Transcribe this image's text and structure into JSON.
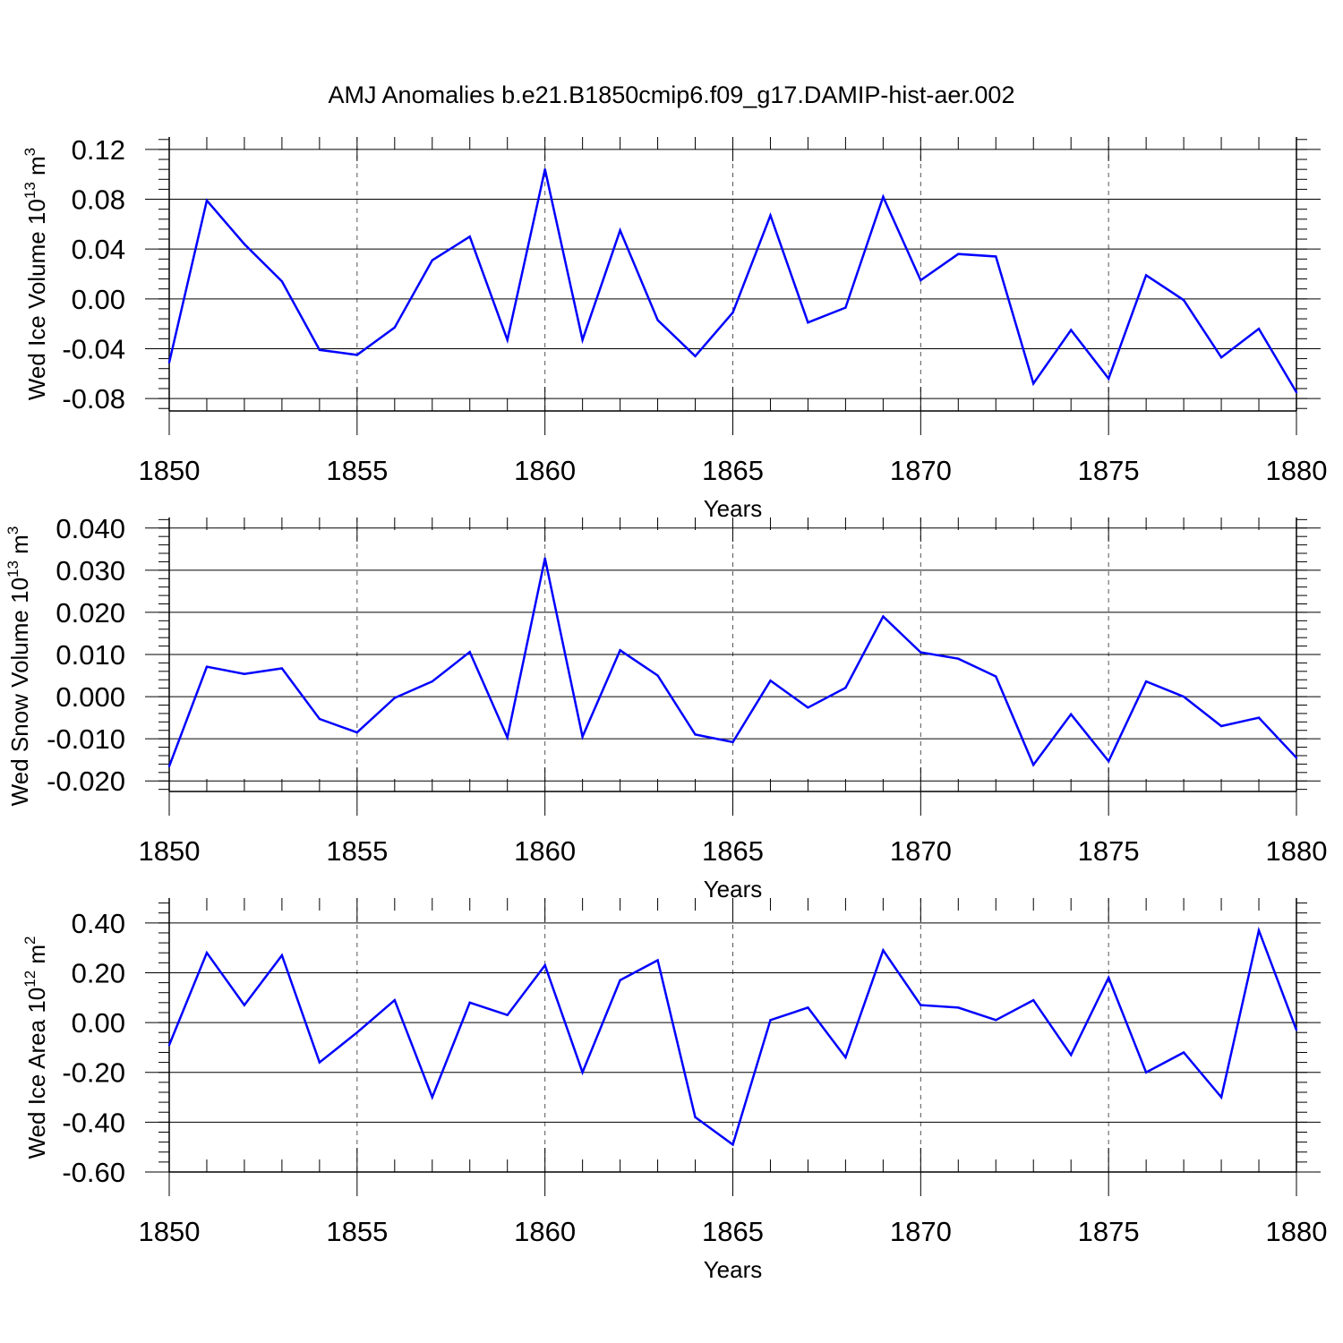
{
  "title": "AMJ Anomalies b.e21.B1850cmip6.f09_g17.DAMIP-hist-aer.002",
  "line_color": "#0000ff",
  "chart_data": [
    {
      "type": "line",
      "ylabel_main": "Wed Ice Volume 10",
      "ylabel_exp": "13",
      "ylabel_unit": " m",
      "ylabel_unit_exp": "3",
      "xlabel": "Years",
      "xlim": [
        1850,
        1880
      ],
      "ylim": [
        -0.09,
        0.13
      ],
      "yticks": [
        -0.08,
        -0.04,
        0.0,
        0.04,
        0.08,
        0.12
      ],
      "ytick_labels": [
        "-0.08",
        "-0.04",
        "0.00",
        "0.04",
        "0.08",
        "0.12"
      ],
      "xticks": [
        1850,
        1855,
        1860,
        1865,
        1870,
        1875,
        1880
      ],
      "xtick_labels": [
        "1850",
        "1855",
        "1860",
        "1865",
        "1870",
        "1875",
        "1880"
      ],
      "x": [
        1850,
        1851,
        1852,
        1853,
        1854,
        1855,
        1856,
        1857,
        1858,
        1859,
        1860,
        1861,
        1862,
        1863,
        1864,
        1865,
        1866,
        1867,
        1868,
        1869,
        1870,
        1871,
        1872,
        1873,
        1874,
        1875,
        1876,
        1877,
        1878,
        1879,
        1880
      ],
      "values": [
        -0.051,
        0.079,
        0.044,
        0.014,
        -0.041,
        -0.045,
        -0.023,
        0.031,
        0.05,
        -0.033,
        0.104,
        -0.033,
        0.055,
        -0.017,
        -0.046,
        -0.011,
        0.067,
        -0.019,
        -0.007,
        0.082,
        0.015,
        0.036,
        0.034,
        -0.068,
        -0.025,
        -0.064,
        0.019,
        -0.001,
        -0.047,
        -0.024,
        -0.075
      ]
    },
    {
      "type": "line",
      "ylabel_main": "Wed Snow Volume 10",
      "ylabel_exp": "13",
      "ylabel_unit": " m",
      "ylabel_unit_exp": "3",
      "xlabel": "Years",
      "xlim": [
        1850,
        1880
      ],
      "ylim": [
        -0.0225,
        0.0425
      ],
      "yticks": [
        -0.02,
        -0.01,
        0.0,
        0.01,
        0.02,
        0.03,
        0.04
      ],
      "ytick_labels": [
        "-0.020",
        "-0.010",
        "0.000",
        "0.010",
        "0.020",
        "0.030",
        "0.040"
      ],
      "xticks": [
        1850,
        1855,
        1860,
        1865,
        1870,
        1875,
        1880
      ],
      "xtick_labels": [
        "1850",
        "1855",
        "1860",
        "1865",
        "1870",
        "1875",
        "1880"
      ],
      "x": [
        1850,
        1851,
        1852,
        1853,
        1854,
        1855,
        1856,
        1857,
        1858,
        1859,
        1860,
        1861,
        1862,
        1863,
        1864,
        1865,
        1866,
        1867,
        1868,
        1869,
        1870,
        1871,
        1872,
        1873,
        1874,
        1875,
        1876,
        1877,
        1878,
        1879,
        1880
      ],
      "values": [
        -0.0165,
        0.0071,
        0.0054,
        0.0067,
        -0.0053,
        -0.0085,
        -0.0003,
        0.0036,
        0.0106,
        -0.0097,
        0.0328,
        -0.0095,
        0.011,
        0.005,
        -0.009,
        -0.0108,
        0.0038,
        -0.0026,
        0.0021,
        0.019,
        0.0105,
        0.009,
        0.0048,
        -0.0162,
        -0.0042,
        -0.0153,
        0.0036,
        0.0,
        -0.007,
        -0.005,
        -0.0145
      ]
    },
    {
      "type": "line",
      "ylabel_main": "Wed Ice Area 10",
      "ylabel_exp": "12",
      "ylabel_unit": " m",
      "ylabel_unit_exp": "2",
      "xlabel": "Years",
      "xlim": [
        1850,
        1880
      ],
      "ylim": [
        -0.6,
        0.5
      ],
      "yticks": [
        -0.6,
        -0.4,
        -0.2,
        0.0,
        0.2,
        0.4
      ],
      "ytick_labels": [
        "-0.60",
        "-0.40",
        "-0.20",
        "0.00",
        "0.20",
        "0.40"
      ],
      "xticks": [
        1850,
        1855,
        1860,
        1865,
        1870,
        1875,
        1880
      ],
      "xtick_labels": [
        "1850",
        "1855",
        "1860",
        "1865",
        "1870",
        "1875",
        "1880"
      ],
      "x": [
        1850,
        1851,
        1852,
        1853,
        1854,
        1855,
        1856,
        1857,
        1858,
        1859,
        1860,
        1861,
        1862,
        1863,
        1864,
        1865,
        1866,
        1867,
        1868,
        1869,
        1870,
        1871,
        1872,
        1873,
        1874,
        1875,
        1876,
        1877,
        1878,
        1879,
        1880
      ],
      "values": [
        -0.09,
        0.28,
        0.07,
        0.27,
        -0.16,
        -0.04,
        0.09,
        -0.3,
        0.08,
        0.03,
        0.23,
        -0.2,
        0.17,
        0.25,
        -0.38,
        -0.49,
        0.01,
        0.06,
        -0.14,
        0.29,
        0.07,
        0.06,
        0.01,
        0.09,
        -0.13,
        0.18,
        -0.2,
        -0.12,
        -0.3,
        0.37,
        -0.03
      ]
    }
  ]
}
